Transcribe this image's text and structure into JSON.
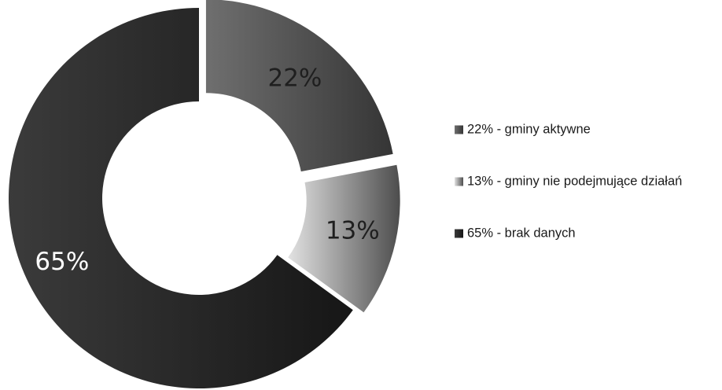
{
  "chart_data": {
    "type": "pie",
    "variant": "donut",
    "categories": [
      "22% - gminy aktywne",
      "13% - gminy nie podejmujące działań",
      "65% - brak danych"
    ],
    "values": [
      22,
      13,
      65
    ],
    "labels": [
      "22%",
      "13%",
      "65%"
    ],
    "legend_position": "right",
    "exploded_slices": [
      "22% - gminy aktywne",
      "13% - gminy nie podejmujące działań"
    ],
    "colors": {
      "slice_1_dark": "#353535",
      "slice_1_light": "#6f6f6f",
      "slice_2_dark": "#4d4d4d",
      "slice_2_light": "#e2e2e2",
      "slice_3_dark": "#161616",
      "slice_3_light": "#3b3b3b",
      "label_dark": "#1f1f1f",
      "label_light": "#ffffff"
    }
  }
}
